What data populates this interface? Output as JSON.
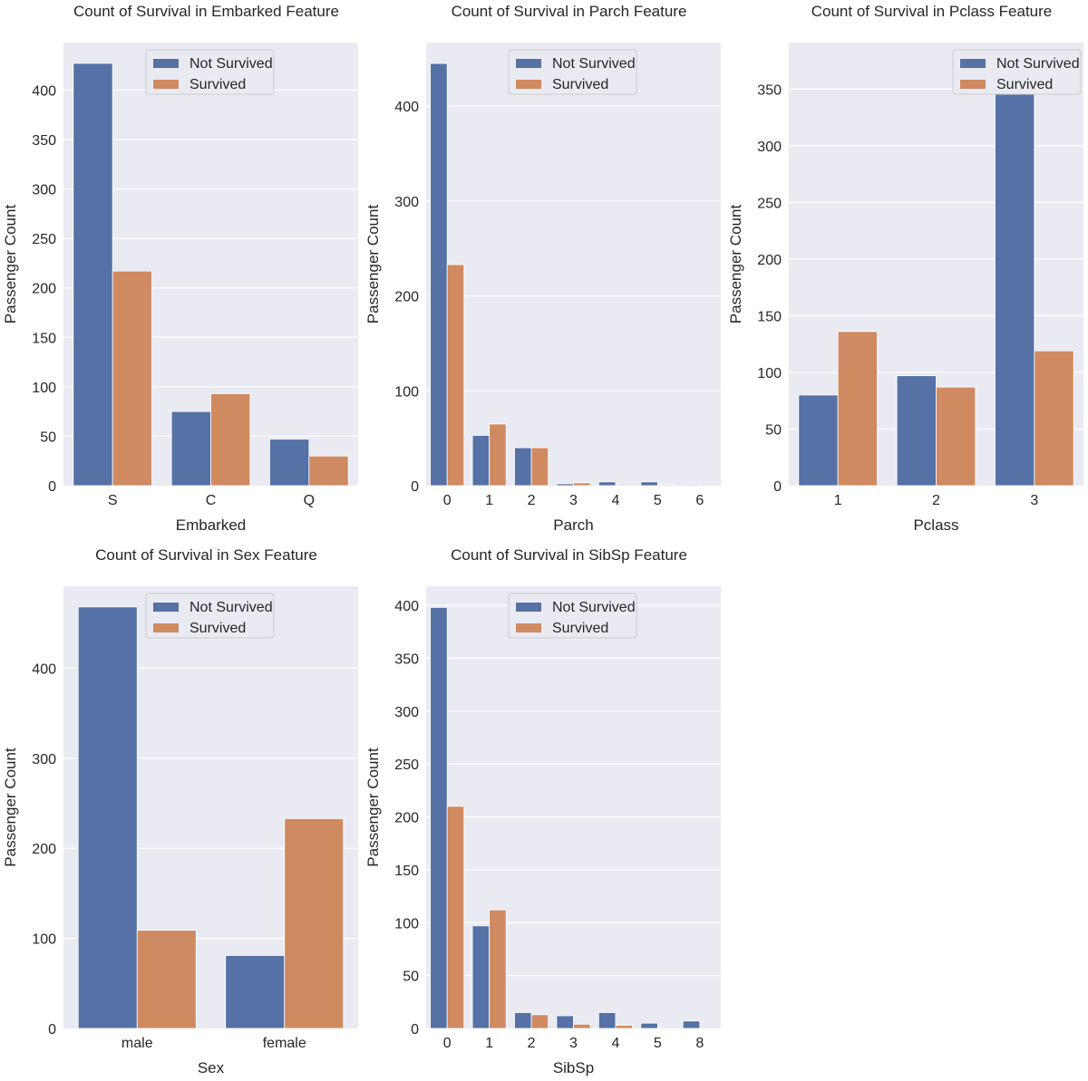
{
  "legend": {
    "not_survived": "Not Survived",
    "survived": "Survived"
  },
  "colors": {
    "not_survived": "#5571a5",
    "survived": "#cf8a62"
  },
  "chart_data": [
    {
      "type": "bar",
      "title": "Count of Survival in Embarked Feature",
      "xlabel": "Embarked",
      "ylabel": "Passenger Count",
      "categories": [
        "S",
        "C",
        "Q"
      ],
      "series": [
        {
          "name": "Not Survived",
          "values": [
            427,
            75,
            47
          ]
        },
        {
          "name": "Survived",
          "values": [
            217,
            93,
            30
          ]
        }
      ],
      "ylim": [
        0,
        448
      ],
      "yticks": [
        0,
        50,
        100,
        150,
        200,
        250,
        300,
        350,
        400
      ],
      "legend_position": "top-center",
      "grid": true
    },
    {
      "type": "bar",
      "title": "Count of Survival in Parch Feature",
      "xlabel": "Parch",
      "ylabel": "Passenger Count",
      "categories": [
        "0",
        "1",
        "2",
        "3",
        "4",
        "5",
        "6"
      ],
      "series": [
        {
          "name": "Not Survived",
          "values": [
            445,
            53,
            40,
            2,
            4,
            4,
            1
          ]
        },
        {
          "name": "Survived",
          "values": [
            233,
            65,
            40,
            3,
            0,
            1,
            0
          ]
        }
      ],
      "ylim": [
        0,
        467
      ],
      "yticks": [
        0,
        100,
        200,
        300,
        400
      ],
      "legend_position": "top-center",
      "grid": true
    },
    {
      "type": "bar",
      "title": "Count of Survival in Pclass Feature",
      "xlabel": "Pclass",
      "ylabel": "Passenger Count",
      "categories": [
        "1",
        "2",
        "3"
      ],
      "series": [
        {
          "name": "Not Survived",
          "values": [
            80,
            97,
            372
          ]
        },
        {
          "name": "Survived",
          "values": [
            136,
            87,
            119
          ]
        }
      ],
      "ylim": [
        0,
        391
      ],
      "yticks": [
        0,
        50,
        100,
        150,
        200,
        250,
        300,
        350
      ],
      "legend_position": "top-right",
      "grid": true
    },
    {
      "type": "bar",
      "title": "Count of Survival in Sex Feature",
      "xlabel": "Sex",
      "ylabel": "Passenger Count",
      "categories": [
        "male",
        "female"
      ],
      "series": [
        {
          "name": "Not Survived",
          "values": [
            468,
            81
          ]
        },
        {
          "name": "Survived",
          "values": [
            109,
            233
          ]
        }
      ],
      "ylim": [
        0,
        491
      ],
      "yticks": [
        0,
        100,
        200,
        300,
        400
      ],
      "legend_position": "top-center",
      "grid": true
    },
    {
      "type": "bar",
      "title": "Count of Survival in SibSp Feature",
      "xlabel": "SibSp",
      "ylabel": "Passenger Count",
      "categories": [
        "0",
        "1",
        "2",
        "3",
        "4",
        "5",
        "8"
      ],
      "series": [
        {
          "name": "Not Survived",
          "values": [
            398,
            97,
            15,
            12,
            15,
            5,
            7
          ]
        },
        {
          "name": "Survived",
          "values": [
            210,
            112,
            13,
            4,
            3,
            0,
            0
          ]
        }
      ],
      "ylim": [
        0,
        418
      ],
      "yticks": [
        0,
        50,
        100,
        150,
        200,
        250,
        300,
        350,
        400
      ],
      "legend_position": "top-center",
      "grid": true
    }
  ]
}
